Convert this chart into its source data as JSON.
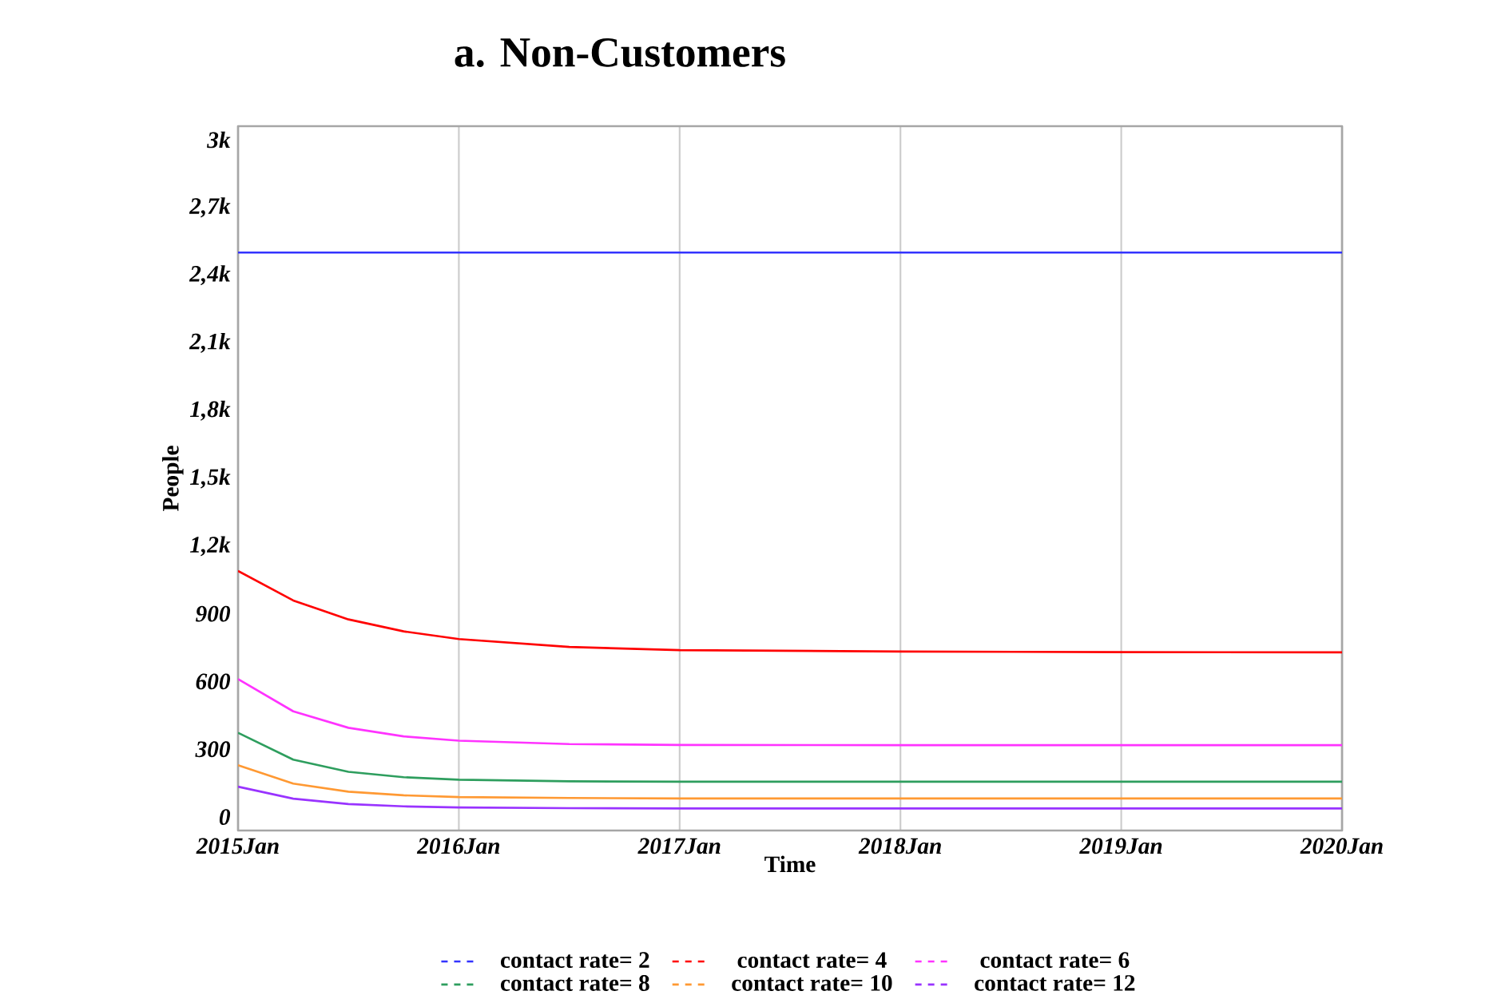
{
  "chart_data": {
    "type": "line",
    "title": "a.  Non-Customers",
    "xlabel": "Time",
    "ylabel": "People",
    "x": [
      "2015-01",
      "2015-04",
      "2015-07",
      "2015-10",
      "2016-01",
      "2016-07",
      "2017-01",
      "2018-01",
      "2019-01",
      "2020-01"
    ],
    "series": [
      {
        "name": "contact rate= 2",
        "color": "#3333ff",
        "values": [
          2500,
          2500,
          2500,
          2500,
          2500,
          2500,
          2500,
          2500,
          2500,
          2500
        ]
      },
      {
        "name": "contact rate= 4",
        "color": "#ff0000",
        "values": [
          1090,
          959,
          875,
          822,
          788,
          753,
          739,
          733,
          730,
          729
        ]
      },
      {
        "name": "contact rate= 6",
        "color": "#ff33ff",
        "values": [
          611,
          468,
          395,
          357,
          338,
          323,
          319,
          318,
          318,
          318
        ]
      },
      {
        "name": "contact rate= 8",
        "color": "#2e9e5e",
        "values": [
          373,
          254,
          200,
          176,
          165,
          158,
          156,
          156,
          156,
          156
        ]
      },
      {
        "name": "contact rate= 10",
        "color": "#ff9933",
        "values": [
          229,
          148,
          112,
          96,
          88,
          84,
          82,
          82,
          82,
          82
        ]
      },
      {
        "name": "contact rate= 12",
        "color": "#9933ff",
        "values": [
          134,
          81,
          57,
          47,
          42,
          39,
          38,
          38,
          38,
          38
        ]
      }
    ],
    "xlim": [
      "2015-01",
      "2020-01"
    ],
    "xticks": [
      {
        "value": "2015-01",
        "label": "2015Jan"
      },
      {
        "value": "2016-01",
        "label": "2016Jan"
      },
      {
        "value": "2017-01",
        "label": "2017Jan"
      },
      {
        "value": "2018-01",
        "label": "2018Jan"
      },
      {
        "value": "2019-01",
        "label": "2019Jan"
      },
      {
        "value": "2020-01",
        "label": "2020Jan"
      }
    ],
    "ylim": [
      -60,
      3060
    ],
    "yticks": [
      0,
      300,
      600,
      900,
      {
        "value": 1200,
        "label": "1,2k"
      },
      {
        "value": 1500,
        "label": "1,5k"
      },
      {
        "value": 1800,
        "label": "1,8k"
      },
      {
        "value": 2100,
        "label": "2,1k"
      },
      {
        "value": 2400,
        "label": "2,4k"
      },
      {
        "value": 2700,
        "label": "2,7k"
      },
      {
        "value": 3000,
        "label": "3k"
      }
    ],
    "grid": "x",
    "legend": "bottom",
    "marker": "none",
    "line_style": "solid"
  }
}
